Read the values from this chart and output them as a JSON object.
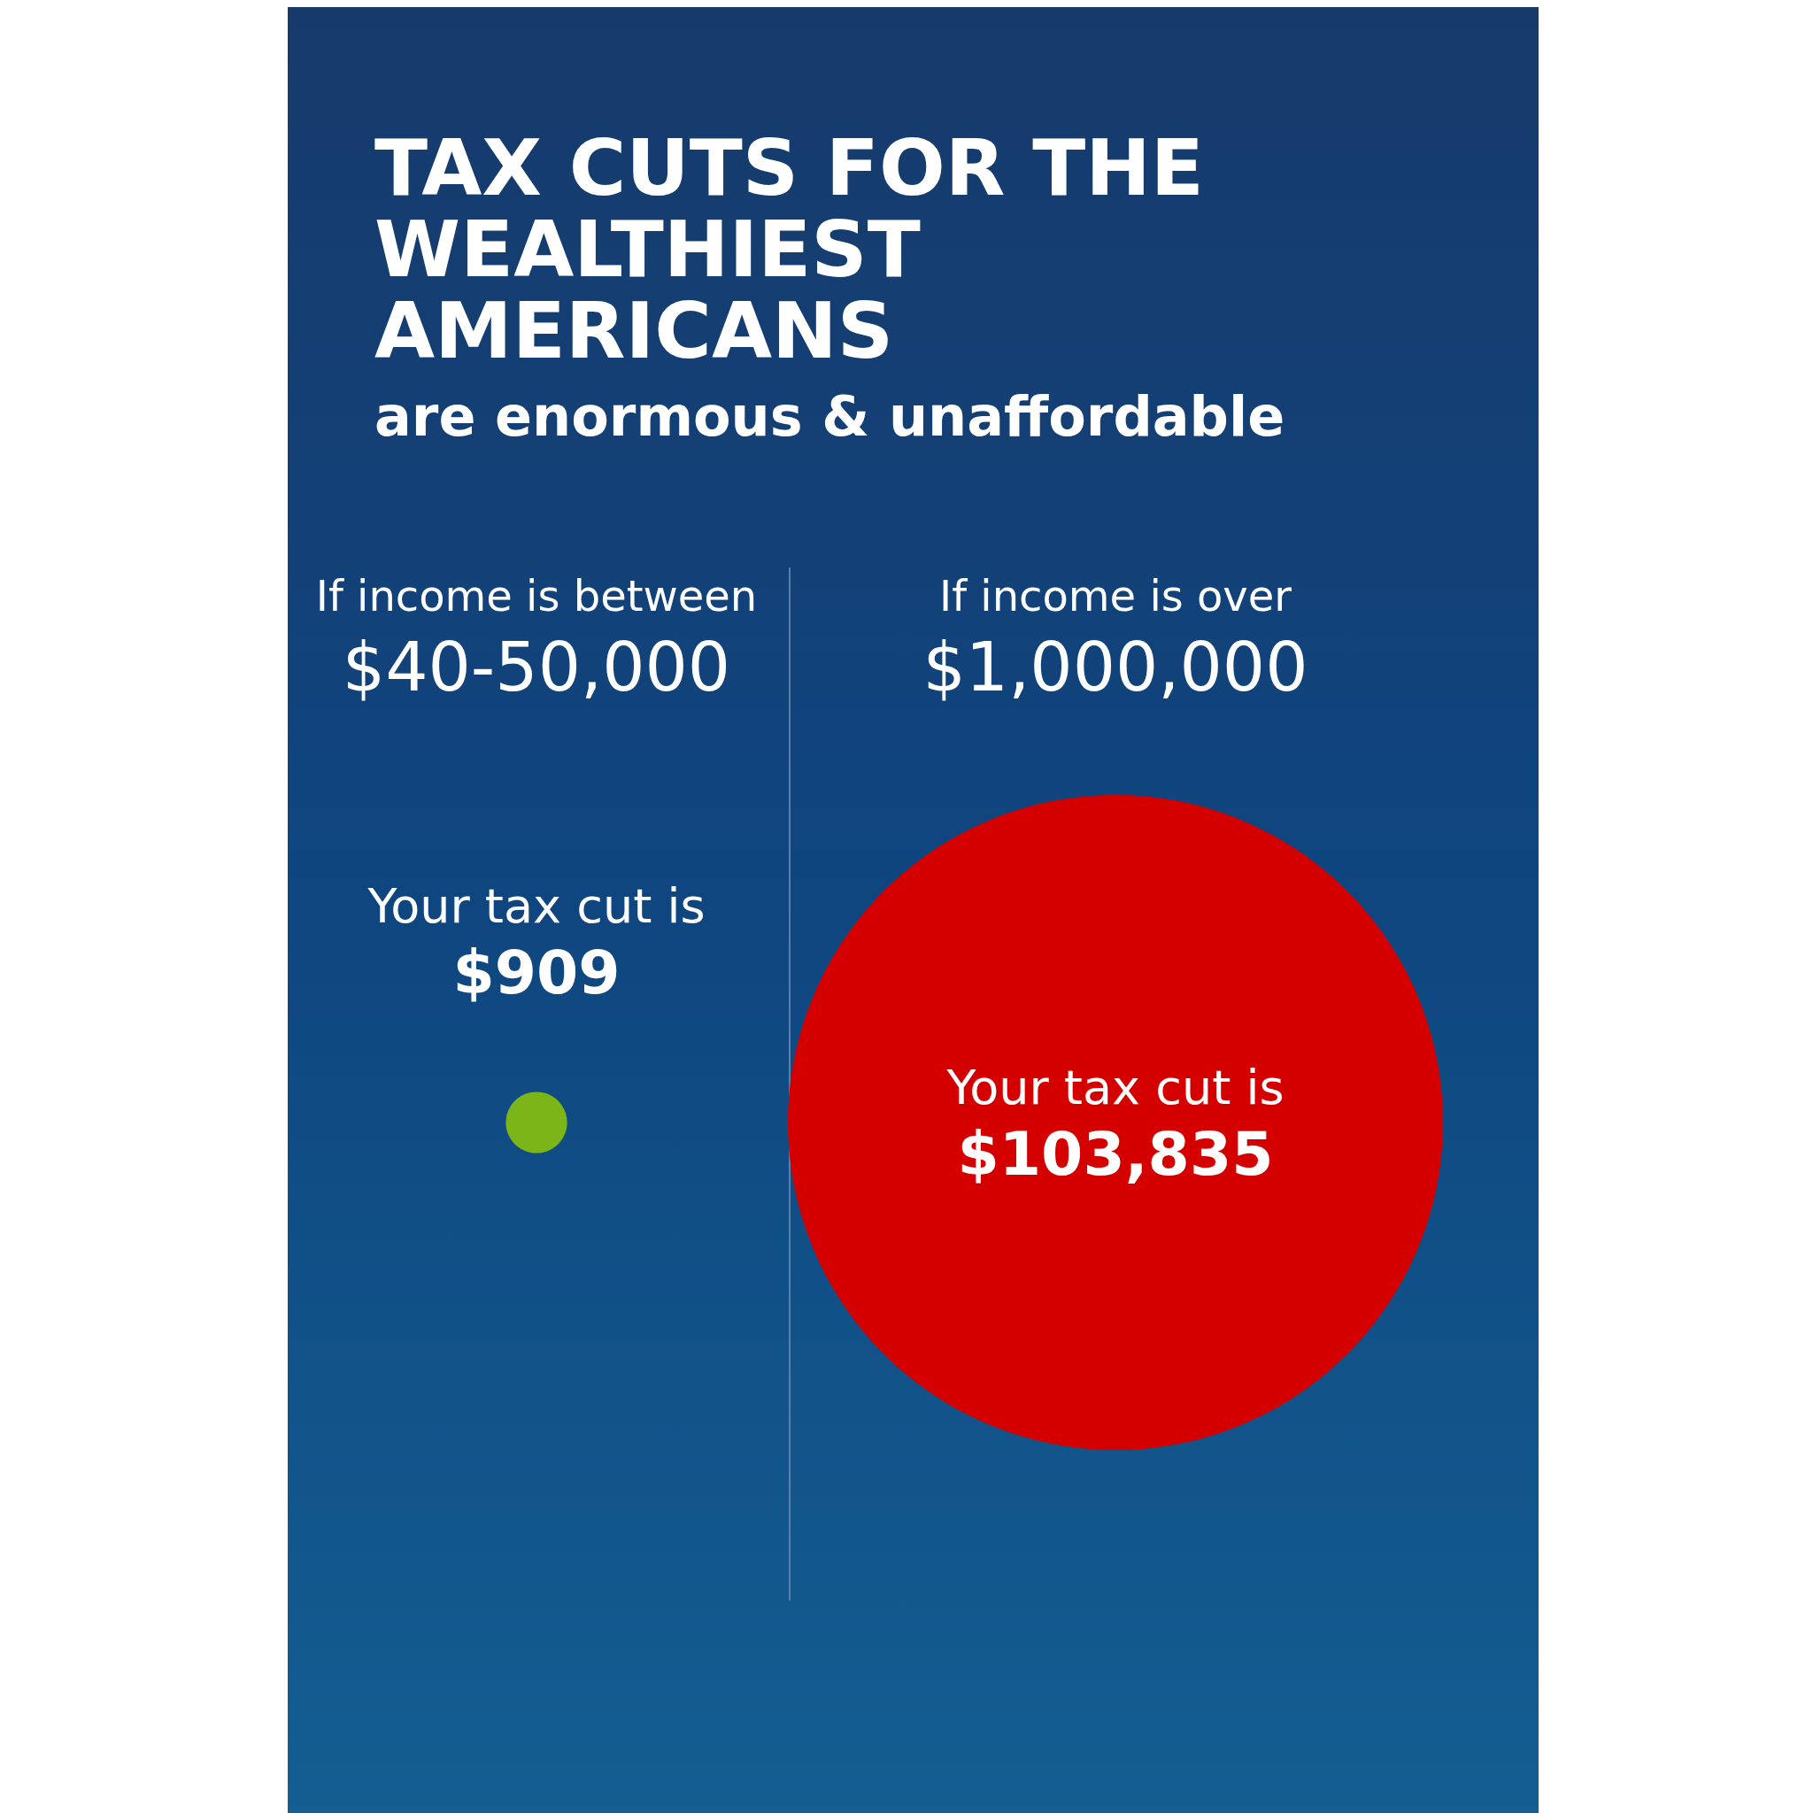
{
  "chart_data": {
    "type": "other",
    "title": "TAX CUTS FOR THE WEALTHIEST AMERICANS",
    "subtitle": "are enormous & unaffordable",
    "categories": [
      "If income is between\n$40-50,000",
      "If income is over\n$1,000,000"
    ],
    "values": [
      909,
      103835
    ],
    "colors": [
      "#7cb518",
      "#d40000"
    ],
    "value_labels": [
      "Your tax cut is\n$909",
      "Your tax cut is\n$103,835"
    ]
  }
}
